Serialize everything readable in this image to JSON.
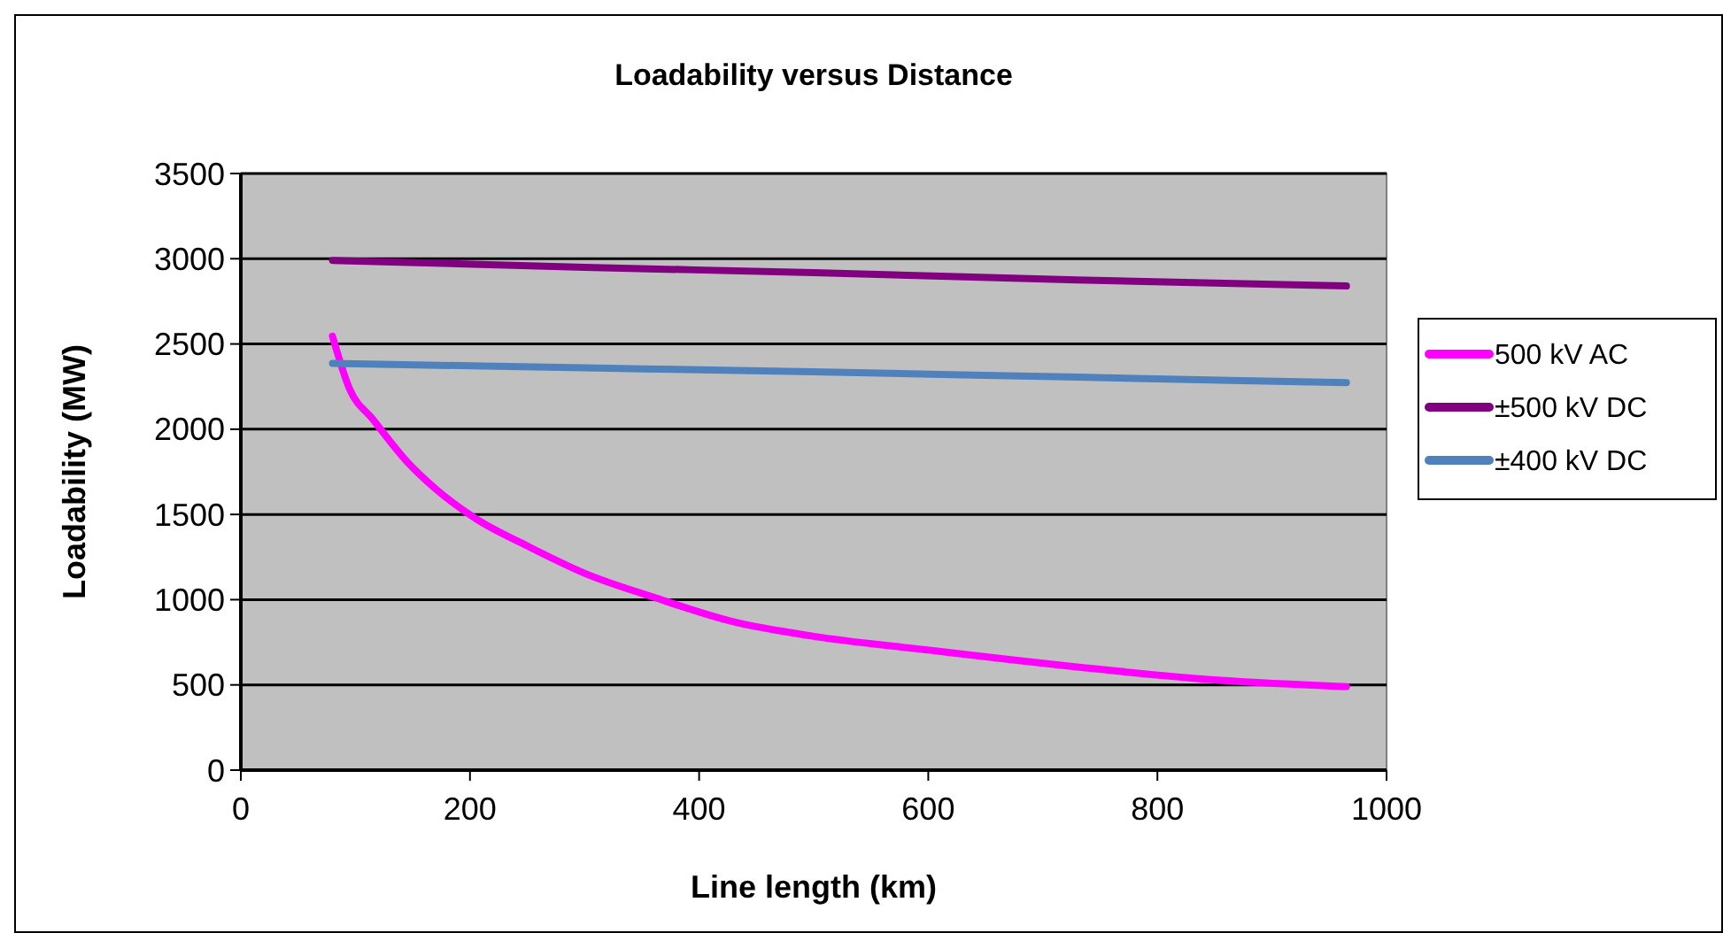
{
  "chart_data": {
    "type": "line",
    "title": "Loadability versus Distance",
    "xlabel": "Line length (km)",
    "ylabel": "Loadability (MW)",
    "xlim": [
      0,
      1000
    ],
    "xticks": [
      0,
      200,
      400,
      600,
      800,
      1000
    ],
    "ylim": [
      0,
      3500
    ],
    "yticks": [
      0,
      500,
      1000,
      1500,
      2000,
      2500,
      3000,
      3500
    ],
    "grid": "y",
    "legend": "right",
    "marker": "none",
    "line_style": "solid",
    "series": [
      {
        "name": "500 kV AC",
        "color": "#ff00ff",
        "x": [
          80,
          95,
          115,
          145,
          170,
          205,
          250,
          300,
          360,
          430,
          500,
          590,
          730,
          855,
          965
        ],
        "values": [
          2545,
          2235,
          2060,
          1810,
          1650,
          1475,
          1315,
          1155,
          1015,
          870,
          785,
          712,
          605,
          527,
          490
        ]
      },
      {
        "name": "±500 kV DC",
        "color": "#800080",
        "x": [
          80,
          300,
          500,
          730,
          965
        ],
        "values": [
          2990,
          2950,
          2918,
          2875,
          2840
        ]
      },
      {
        "name": "±400 kV DC",
        "color": "#4f81bd",
        "x": [
          80,
          300,
          500,
          730,
          965
        ],
        "values": [
          2386,
          2360,
          2337,
          2305,
          2273
        ]
      }
    ]
  }
}
